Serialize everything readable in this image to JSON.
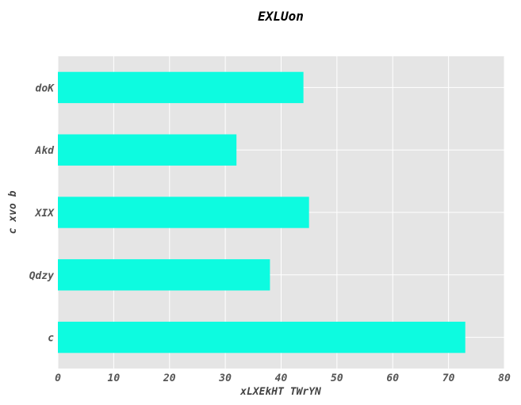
{
  "chart_data": {
    "type": "bar",
    "orientation": "horizontal",
    "title": "EXLUon",
    "xlabel": "xLXEkHT TWrYN",
    "ylabel": "c xvo b",
    "categories": [
      "c",
      "Qdzy",
      "XIX",
      "Akd",
      "doK"
    ],
    "values": [
      73,
      38,
      45,
      32,
      44
    ],
    "xlim": [
      0,
      80
    ],
    "xticks": [
      "0",
      "10",
      "20",
      "30",
      "40",
      "50",
      "60",
      "70",
      "80"
    ],
    "grid": true,
    "colors": {
      "bar": "#0dfbe0",
      "plot_bg": "#e5e5e5",
      "grid": "#ffffff"
    }
  }
}
